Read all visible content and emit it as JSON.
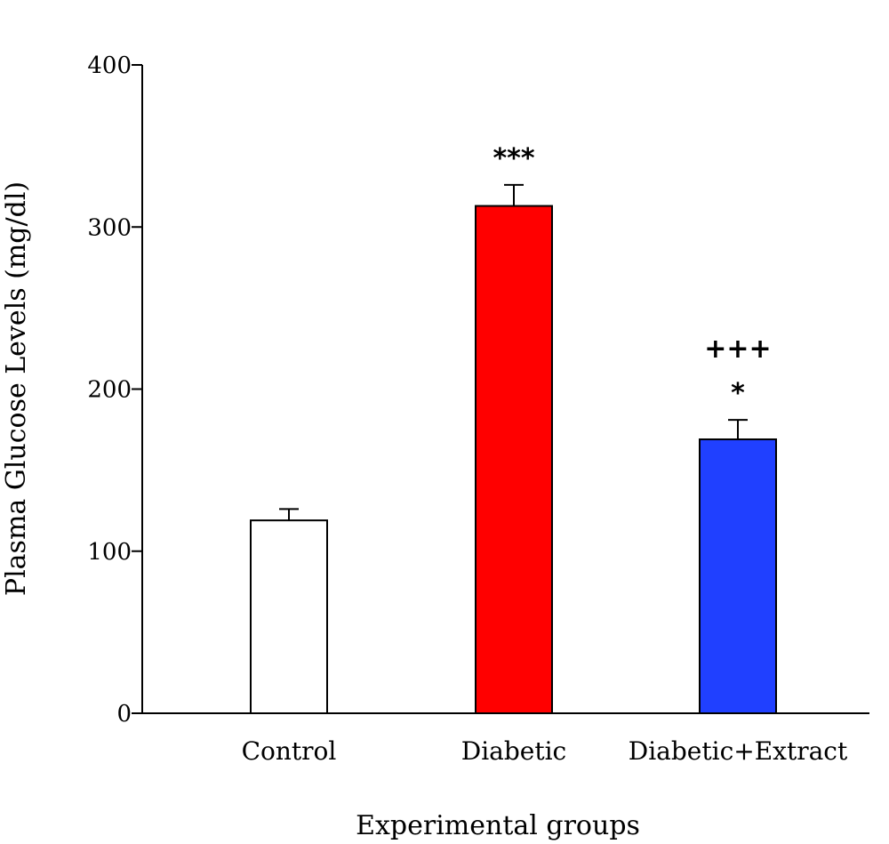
{
  "chart_data": {
    "type": "bar",
    "title": "",
    "xlabel": "Experimental groups",
    "ylabel": "Plasma Glucose Levels (mg/dl)",
    "ylim": [
      0,
      400
    ],
    "yticks": [
      0,
      100,
      200,
      300,
      400
    ],
    "categories": [
      "Control",
      "Diabetic",
      "Diabetic+Extract"
    ],
    "values": [
      119,
      313,
      169
    ],
    "errors": [
      7,
      13,
      12
    ],
    "colors": [
      "#ffffff",
      "#ff0000",
      "#2040ff"
    ],
    "annotations": [
      [],
      [
        "***"
      ],
      [
        "*",
        "+++"
      ]
    ],
    "grid": false,
    "legend": "none"
  }
}
